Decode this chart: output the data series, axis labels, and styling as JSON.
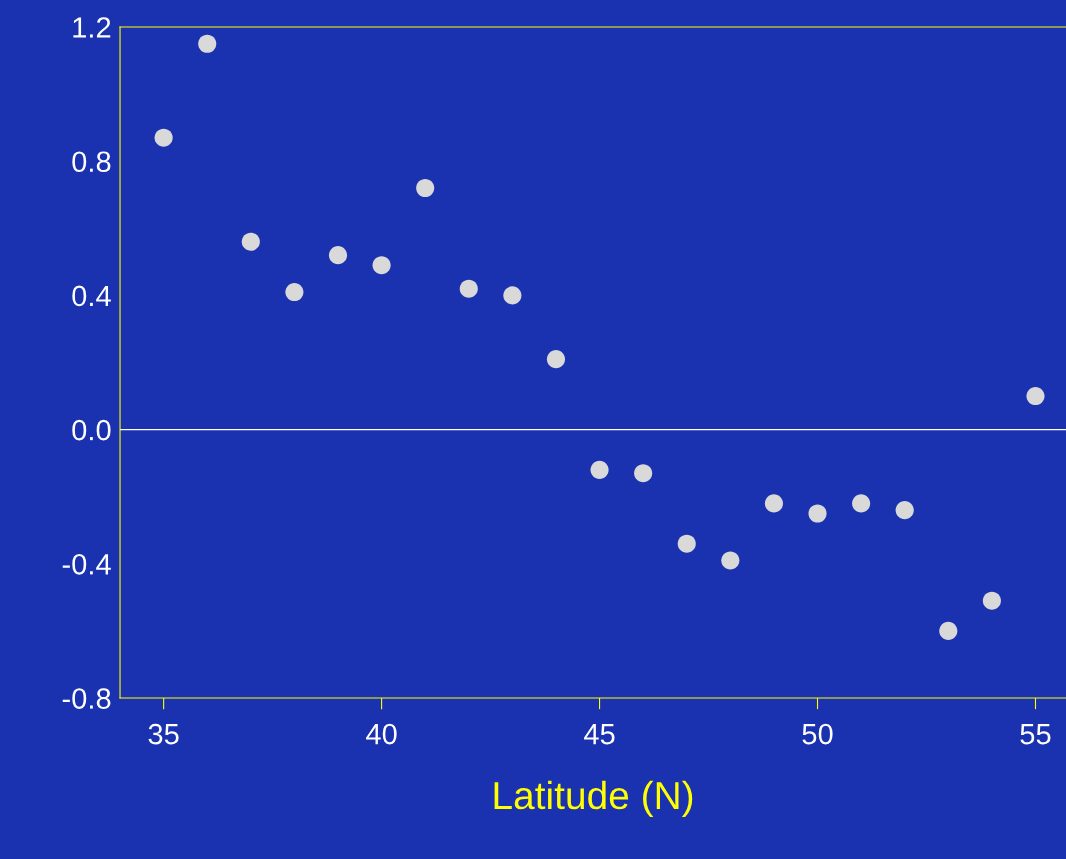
{
  "chart_data": {
    "type": "scatter",
    "xlabel": "Latitude (N)",
    "x": [
      35,
      36,
      37,
      38,
      39,
      40,
      41,
      42,
      43,
      44,
      45,
      46,
      47,
      48,
      49,
      50,
      51,
      52,
      53,
      54,
      55
    ],
    "series": [
      {
        "color": "#d9d9d9",
        "values": [
          0.87,
          1.15,
          0.56,
          0.41,
          0.52,
          0.49,
          0.72,
          0.42,
          0.4,
          0.21,
          -0.12,
          -0.13,
          -0.34,
          -0.39,
          -0.22,
          -0.25,
          -0.22,
          -0.24,
          -0.6,
          -0.51,
          0.1
        ]
      }
    ],
    "marker": "circle",
    "xlim": [
      34,
      55.7
    ],
    "xticks": [
      35,
      40,
      45,
      50,
      55
    ],
    "ylim": [
      -0.8,
      1.2
    ],
    "yticks": [
      {
        "value": -0.8,
        "label": "-0.8"
      },
      {
        "value": -0.4,
        "label": "-0.4"
      },
      {
        "value": 0,
        "label": "0.0"
      },
      {
        "value": 0.4,
        "label": "0.4"
      },
      {
        "value": 0.8,
        "label": "0.8"
      },
      {
        "value": 1.2,
        "label": "1.2"
      }
    ],
    "ref_lines": [
      {
        "axis": "y",
        "value": 0,
        "color": "#ffffff"
      }
    ],
    "grid": false,
    "legend": false
  }
}
